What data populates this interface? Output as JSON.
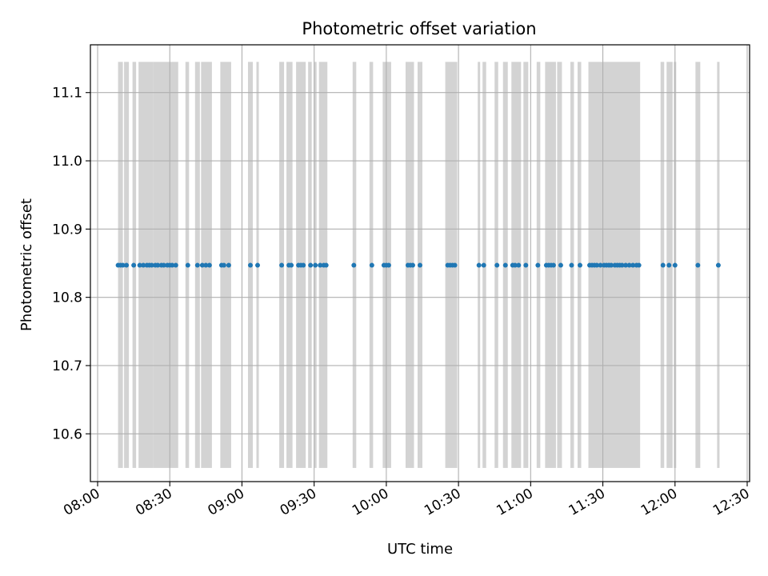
{
  "chart_data": {
    "type": "scatter",
    "title": "Photometric offset variation",
    "xlabel": "UTC time",
    "ylabel": "Photometric offset",
    "xlim": [
      "07:57",
      "12:31"
    ],
    "ylim": [
      10.53,
      11.17
    ],
    "xticks": [
      "08:00",
      "08:30",
      "09:00",
      "09:30",
      "10:00",
      "10:30",
      "11:00",
      "11:30",
      "12:00",
      "12:30"
    ],
    "yticks": [
      "10.6",
      "10.7",
      "10.8",
      "10.9",
      "11.0",
      "11.1"
    ],
    "grid": true,
    "colors": {
      "points": "#1f77b4",
      "bands": "#d3d3d3",
      "grid": "#b0b0b0"
    },
    "band_range": [
      10.55,
      11.145
    ],
    "bands": [
      [
        "08:08:30",
        "08:10:30"
      ],
      [
        "08:11:00",
        "08:13:00"
      ],
      [
        "08:14:30",
        "08:16:00"
      ],
      [
        "08:17:00",
        "08:23:00"
      ],
      [
        "08:23:00",
        "08:33:30"
      ],
      [
        "08:36:30",
        "08:38:00"
      ],
      [
        "08:40:30",
        "08:42:30"
      ],
      [
        "08:43:00",
        "08:47:30"
      ],
      [
        "08:51:00",
        "08:55:30"
      ],
      [
        "09:02:30",
        "09:04:30"
      ],
      [
        "09:06:00",
        "09:07:00"
      ],
      [
        "09:15:30",
        "09:17:30"
      ],
      [
        "09:18:30",
        "09:21:00"
      ],
      [
        "09:22:30",
        "09:26:30"
      ],
      [
        "09:27:30",
        "09:29:00"
      ],
      [
        "09:30:00",
        "09:31:00"
      ],
      [
        "09:32:00",
        "09:35:30"
      ],
      [
        "09:46:00",
        "09:47:30"
      ],
      [
        "09:53:00",
        "09:54:30"
      ],
      [
        "09:58:30",
        "10:02:00"
      ],
      [
        "10:08:00",
        "10:11:30"
      ],
      [
        "10:13:00",
        "10:15:00"
      ],
      [
        "10:24:30",
        "10:29:30"
      ],
      [
        "10:38:00",
        "10:39:00"
      ],
      [
        "10:40:00",
        "10:41:30"
      ],
      [
        "10:45:00",
        "10:46:30"
      ],
      [
        "10:48:30",
        "10:50:30"
      ],
      [
        "10:52:00",
        "10:56:00"
      ],
      [
        "10:57:00",
        "10:59:00"
      ],
      [
        "11:02:30",
        "11:04:00"
      ],
      [
        "11:06:00",
        "11:10:30"
      ],
      [
        "11:11:00",
        "11:13:00"
      ],
      [
        "11:16:30",
        "11:18:00"
      ],
      [
        "11:19:30",
        "11:21:00"
      ],
      [
        "11:24:00",
        "11:45:30"
      ],
      [
        "11:54:00",
        "11:55:30"
      ],
      [
        "11:56:30",
        "11:59:00"
      ],
      [
        "11:59:30",
        "12:00:30"
      ],
      [
        "12:08:30",
        "12:10:30"
      ],
      [
        "12:17:30",
        "12:18:30"
      ]
    ],
    "points": [
      [
        "08:08:30",
        10.847
      ],
      [
        "08:09:30",
        10.847
      ],
      [
        "08:10:30",
        10.847
      ],
      [
        "08:12:00",
        10.847
      ],
      [
        "08:15:00",
        10.847
      ],
      [
        "08:17:30",
        10.847
      ],
      [
        "08:19:00",
        10.847
      ],
      [
        "08:20:30",
        10.847
      ],
      [
        "08:21:30",
        10.847
      ],
      [
        "08:22:30",
        10.847
      ],
      [
        "08:24:00",
        10.847
      ],
      [
        "08:25:00",
        10.847
      ],
      [
        "08:26:30",
        10.847
      ],
      [
        "08:27:30",
        10.847
      ],
      [
        "08:29:00",
        10.847
      ],
      [
        "08:30:00",
        10.847
      ],
      [
        "08:31:00",
        10.847
      ],
      [
        "08:32:30",
        10.847
      ],
      [
        "08:37:30",
        10.847
      ],
      [
        "08:41:30",
        10.847
      ],
      [
        "08:43:30",
        10.847
      ],
      [
        "08:45:00",
        10.847
      ],
      [
        "08:46:30",
        10.847
      ],
      [
        "08:51:30",
        10.847
      ],
      [
        "08:52:30",
        10.847
      ],
      [
        "08:54:30",
        10.847
      ],
      [
        "09:03:30",
        10.847
      ],
      [
        "09:06:30",
        10.847
      ],
      [
        "09:16:30",
        10.847
      ],
      [
        "09:19:30",
        10.847
      ],
      [
        "09:20:30",
        10.847
      ],
      [
        "09:23:30",
        10.847
      ],
      [
        "09:24:30",
        10.847
      ],
      [
        "09:25:30",
        10.847
      ],
      [
        "09:28:30",
        10.847
      ],
      [
        "09:30:30",
        10.847
      ],
      [
        "09:32:30",
        10.847
      ],
      [
        "09:34:00",
        10.847
      ],
      [
        "09:35:00",
        10.847
      ],
      [
        "09:46:30",
        10.847
      ],
      [
        "09:54:00",
        10.847
      ],
      [
        "09:59:00",
        10.847
      ],
      [
        "10:00:00",
        10.847
      ],
      [
        "10:01:00",
        10.847
      ],
      [
        "10:09:00",
        10.847
      ],
      [
        "10:10:00",
        10.847
      ],
      [
        "10:11:00",
        10.847
      ],
      [
        "10:14:00",
        10.847
      ],
      [
        "10:25:30",
        10.847
      ],
      [
        "10:26:30",
        10.847
      ],
      [
        "10:27:30",
        10.847
      ],
      [
        "10:28:30",
        10.847
      ],
      [
        "10:38:30",
        10.847
      ],
      [
        "10:40:30",
        10.847
      ],
      [
        "10:46:00",
        10.847
      ],
      [
        "10:49:30",
        10.847
      ],
      [
        "10:52:30",
        10.847
      ],
      [
        "10:53:30",
        10.847
      ],
      [
        "10:55:00",
        10.847
      ],
      [
        "10:58:00",
        10.847
      ],
      [
        "11:03:00",
        10.847
      ],
      [
        "11:06:30",
        10.847
      ],
      [
        "11:07:30",
        10.847
      ],
      [
        "11:08:30",
        10.847
      ],
      [
        "11:09:30",
        10.847
      ],
      [
        "11:12:30",
        10.847
      ],
      [
        "11:17:00",
        10.847
      ],
      [
        "11:20:30",
        10.847
      ],
      [
        "11:24:30",
        10.847
      ],
      [
        "11:25:30",
        10.847
      ],
      [
        "11:26:30",
        10.847
      ],
      [
        "11:27:30",
        10.847
      ],
      [
        "11:29:00",
        10.847
      ],
      [
        "11:30:30",
        10.847
      ],
      [
        "11:31:30",
        10.847
      ],
      [
        "11:32:30",
        10.847
      ],
      [
        "11:33:30",
        10.847
      ],
      [
        "11:35:00",
        10.847
      ],
      [
        "11:36:00",
        10.847
      ],
      [
        "11:37:00",
        10.847
      ],
      [
        "11:38:00",
        10.847
      ],
      [
        "11:39:30",
        10.847
      ],
      [
        "11:41:00",
        10.847
      ],
      [
        "11:42:30",
        10.847
      ],
      [
        "11:44:00",
        10.847
      ],
      [
        "11:45:00",
        10.847
      ],
      [
        "11:55:00",
        10.847
      ],
      [
        "11:57:30",
        10.847
      ],
      [
        "12:00:00",
        10.847
      ],
      [
        "12:09:30",
        10.847
      ],
      [
        "12:18:00",
        10.847
      ]
    ]
  }
}
